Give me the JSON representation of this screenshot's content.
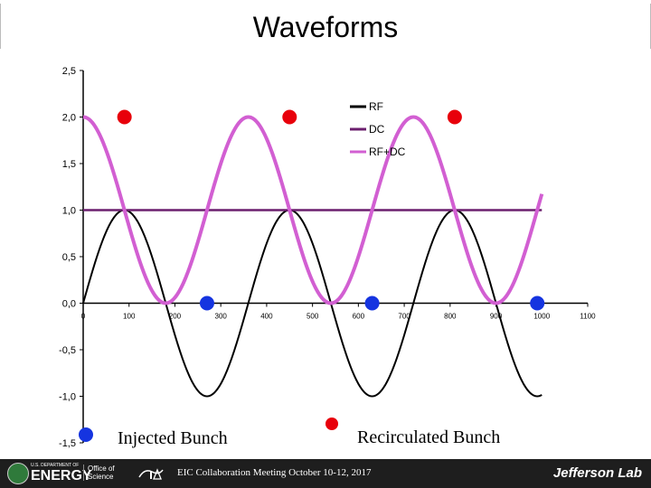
{
  "title": "Waveforms",
  "chart_data": {
    "type": "line",
    "title": "Waveforms",
    "xlim": [
      0,
      1100
    ],
    "ylim": [
      -1.5,
      2.5
    ],
    "x_ticks": [
      0,
      100,
      200,
      300,
      400,
      500,
      600,
      700,
      800,
      900,
      1000,
      1100
    ],
    "x_tick_labels": [
      "0",
      "100",
      "200",
      "300",
      "400",
      "500",
      "600",
      "700",
      "800",
      "900",
      "1000",
      "1100"
    ],
    "y_ticks": [
      -1.5,
      -1.0,
      -0.5,
      0.0,
      0.5,
      1.0,
      1.5,
      2.0,
      2.5
    ],
    "y_tick_labels": [
      "-1,5",
      "-1,0",
      "-0,5",
      "0,0",
      "0,5",
      "1,0",
      "1,5",
      "2,0",
      "2,5"
    ],
    "x_range": [
      0,
      1000
    ],
    "period": 360,
    "series": [
      {
        "name": "RF",
        "color": "#000000",
        "formula": "sin(2*pi*(x-0)/360)",
        "amplitude": 1.0,
        "offset": 0.0
      },
      {
        "name": "DC",
        "color": "#6b1f6e",
        "formula": "constant",
        "value": 1.0
      },
      {
        "name": "RF+DC",
        "color": "#d25fd2",
        "formula": "1 + sin(2*pi*(x+90)/360)",
        "amplitude": 1.0,
        "offset": 1.0
      }
    ],
    "markers": [
      {
        "group": "recirculated",
        "color": "#e8000b",
        "points": [
          [
            90,
            2.0
          ],
          [
            450,
            2.0
          ],
          [
            810,
            2.0
          ]
        ]
      },
      {
        "group": "injected",
        "color": "#1534e0",
        "points": [
          [
            270,
            0.0
          ],
          [
            630,
            0.0
          ],
          [
            990,
            0.0
          ]
        ]
      }
    ],
    "legend": {
      "position": "top-right",
      "entries": [
        "RF",
        "DC",
        "RF+DC"
      ]
    },
    "annotations": {
      "injected_label": "Injected Bunch",
      "recirculated_label": "Recirculated Bunch"
    },
    "grid": false
  },
  "footer": {
    "text": "EIC Collaboration Meeting October 10-12, 2017",
    "doe_small": "U.S. DEPARTMENT OF",
    "doe_big": "ENERGY",
    "office_line1": "Office of",
    "office_line2": "Science",
    "jlab": "Jefferson Lab"
  },
  "colors": {
    "recirculated": "#e8000b",
    "injected": "#1534e0",
    "rf": "#000000",
    "dc": "#6b1f6e",
    "rfdc": "#d25fd2"
  }
}
